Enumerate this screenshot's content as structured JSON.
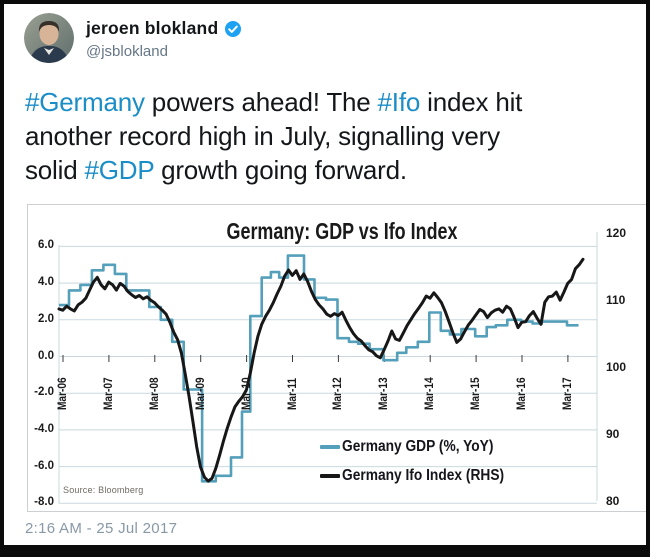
{
  "tweet": {
    "author_name": "jeroen blokland",
    "handle": "@jsblokland",
    "timestamp": "2:16 AM - 25 Jul 2017",
    "lines": [
      [
        {
          "t": "#Germany",
          "h": true
        },
        {
          "t": " powers ahead! The ",
          "h": false
        },
        {
          "t": "#Ifo",
          "h": true
        },
        {
          "t": " index hit",
          "h": false
        }
      ],
      [
        {
          "t": "another record high in July, signalling very",
          "h": false
        }
      ],
      [
        {
          "t": "solid ",
          "h": false
        },
        {
          "t": "#GDP",
          "h": true
        },
        {
          "t": " growth going forward.",
          "h": false
        }
      ]
    ]
  },
  "colors": {
    "hashtag": "#1b8dc7",
    "badge": "#1da1f2",
    "gdp": "#549fba",
    "ifo": "#171717",
    "grid": "#c9d9de",
    "tick": "#3a3a3a"
  },
  "chart_data": {
    "type": "line",
    "title": "Germany: GDP vs Ifo Index",
    "source_note": "Source: Bloomberg",
    "x_tick_labels": [
      "Mar-06",
      "Mar-07",
      "Mar-08",
      "Mar-09",
      "Mar-10",
      "Mar-11",
      "Mar-12",
      "Mar-13",
      "Mar-14",
      "Mar-15",
      "Mar-16",
      "Mar-17"
    ],
    "left_axis": {
      "ticks": [
        "6.0",
        "4.0",
        "2.0",
        "0.0",
        "-2.0",
        "-4.0",
        "-6.0",
        "-8.0"
      ],
      "range": [
        -8,
        6
      ]
    },
    "right_axis": {
      "ticks": [
        "120",
        "110",
        "100",
        "90",
        "80"
      ],
      "range": [
        80,
        120
      ]
    },
    "legend": [
      {
        "label": "Germany GDP (%, YoY)",
        "series": "gdp"
      },
      {
        "label": "Germany Ifo Index (RHS)",
        "series": "ifo"
      }
    ],
    "series": [
      {
        "name": "Germany GDP (%, YoY)",
        "axis": "left",
        "style": "step",
        "points": [
          [
            2006.08,
            2.8
          ],
          [
            2006.3,
            3.6
          ],
          [
            2006.55,
            3.9
          ],
          [
            2006.8,
            4.7
          ],
          [
            2007.05,
            5.0
          ],
          [
            2007.3,
            4.5
          ],
          [
            2007.55,
            3.6
          ],
          [
            2008.05,
            2.7
          ],
          [
            2008.3,
            2.0
          ],
          [
            2008.55,
            0.8
          ],
          [
            2008.8,
            -1.8
          ],
          [
            2009.2,
            -6.8
          ],
          [
            2009.5,
            -6.5
          ],
          [
            2009.83,
            -5.5
          ],
          [
            2010.07,
            -3.0
          ],
          [
            2010.25,
            2.2
          ],
          [
            2010.5,
            4.3
          ],
          [
            2010.7,
            4.6
          ],
          [
            2010.88,
            4.3
          ],
          [
            2011.07,
            5.5
          ],
          [
            2011.42,
            4.2
          ],
          [
            2011.65,
            3.2
          ],
          [
            2011.9,
            3.1
          ],
          [
            2012.15,
            1.0
          ],
          [
            2012.4,
            0.8
          ],
          [
            2012.6,
            0.7
          ],
          [
            2012.85,
            0.4
          ],
          [
            2013.15,
            -0.2
          ],
          [
            2013.45,
            0.2
          ],
          [
            2013.65,
            0.5
          ],
          [
            2013.9,
            0.8
          ],
          [
            2014.15,
            2.4
          ],
          [
            2014.4,
            1.4
          ],
          [
            2014.6,
            1.2
          ],
          [
            2014.85,
            1.5
          ],
          [
            2015.15,
            1.1
          ],
          [
            2015.4,
            1.6
          ],
          [
            2015.6,
            1.7
          ],
          [
            2015.85,
            2.0
          ],
          [
            2016.15,
            1.9
          ],
          [
            2016.4,
            1.8
          ],
          [
            2016.6,
            1.9
          ],
          [
            2016.85,
            1.9
          ],
          [
            2017.15,
            1.7
          ],
          [
            2017.4,
            1.7
          ]
        ]
      },
      {
        "name": "Germany Ifo Index (RHS)",
        "axis": "right",
        "style": "line",
        "start": 2006.0833,
        "step_years": 0.08333,
        "values": [
          108.6,
          108.4,
          109.0,
          108.6,
          108.3,
          109.2,
          109.6,
          110.2,
          111.4,
          112.6,
          113.3,
          112.2,
          111.6,
          112.6,
          112.2,
          111.4,
          112.4,
          112.0,
          111.2,
          110.7,
          110.3,
          110.6,
          110.1,
          110.4,
          109.9,
          109.5,
          108.9,
          108.4,
          107.8,
          106.6,
          105.1,
          104.0,
          102.0,
          98.9,
          95.5,
          91.8,
          88.0,
          85.0,
          83.5,
          82.9,
          83.3,
          84.8,
          86.8,
          88.9,
          90.8,
          92.5,
          94.0,
          94.8,
          95.5,
          96.5,
          99.0,
          102.0,
          104.5,
          106.3,
          107.5,
          108.4,
          109.5,
          110.8,
          112.0,
          113.5,
          114.4,
          113.6,
          114.3,
          113.0,
          113.8,
          112.7,
          111.2,
          110.0,
          109.2,
          108.6,
          107.8,
          107.5,
          107.9,
          107.6,
          108.1,
          106.9,
          105.8,
          104.9,
          104.2,
          103.8,
          103.1,
          102.5,
          102.2,
          101.6,
          101.3,
          102.5,
          103.8,
          105.3,
          104.1,
          103.9,
          105.0,
          106.1,
          107.0,
          107.9,
          108.7,
          109.5,
          110.5,
          110.2,
          111.0,
          110.3,
          109.5,
          108.2,
          106.6,
          105.0,
          103.6,
          104.1,
          105.2,
          106.2,
          106.9,
          107.7,
          108.5,
          108.2,
          107.3,
          108.0,
          108.4,
          108.6,
          108.1,
          109.0,
          108.6,
          107.3,
          105.8,
          106.6,
          106.7,
          107.6,
          108.2,
          107.2,
          106.3,
          109.6,
          110.4,
          110.5,
          111.1,
          109.9,
          111.1,
          112.4,
          113.0,
          114.6,
          115.2,
          116.0
        ]
      }
    ]
  }
}
